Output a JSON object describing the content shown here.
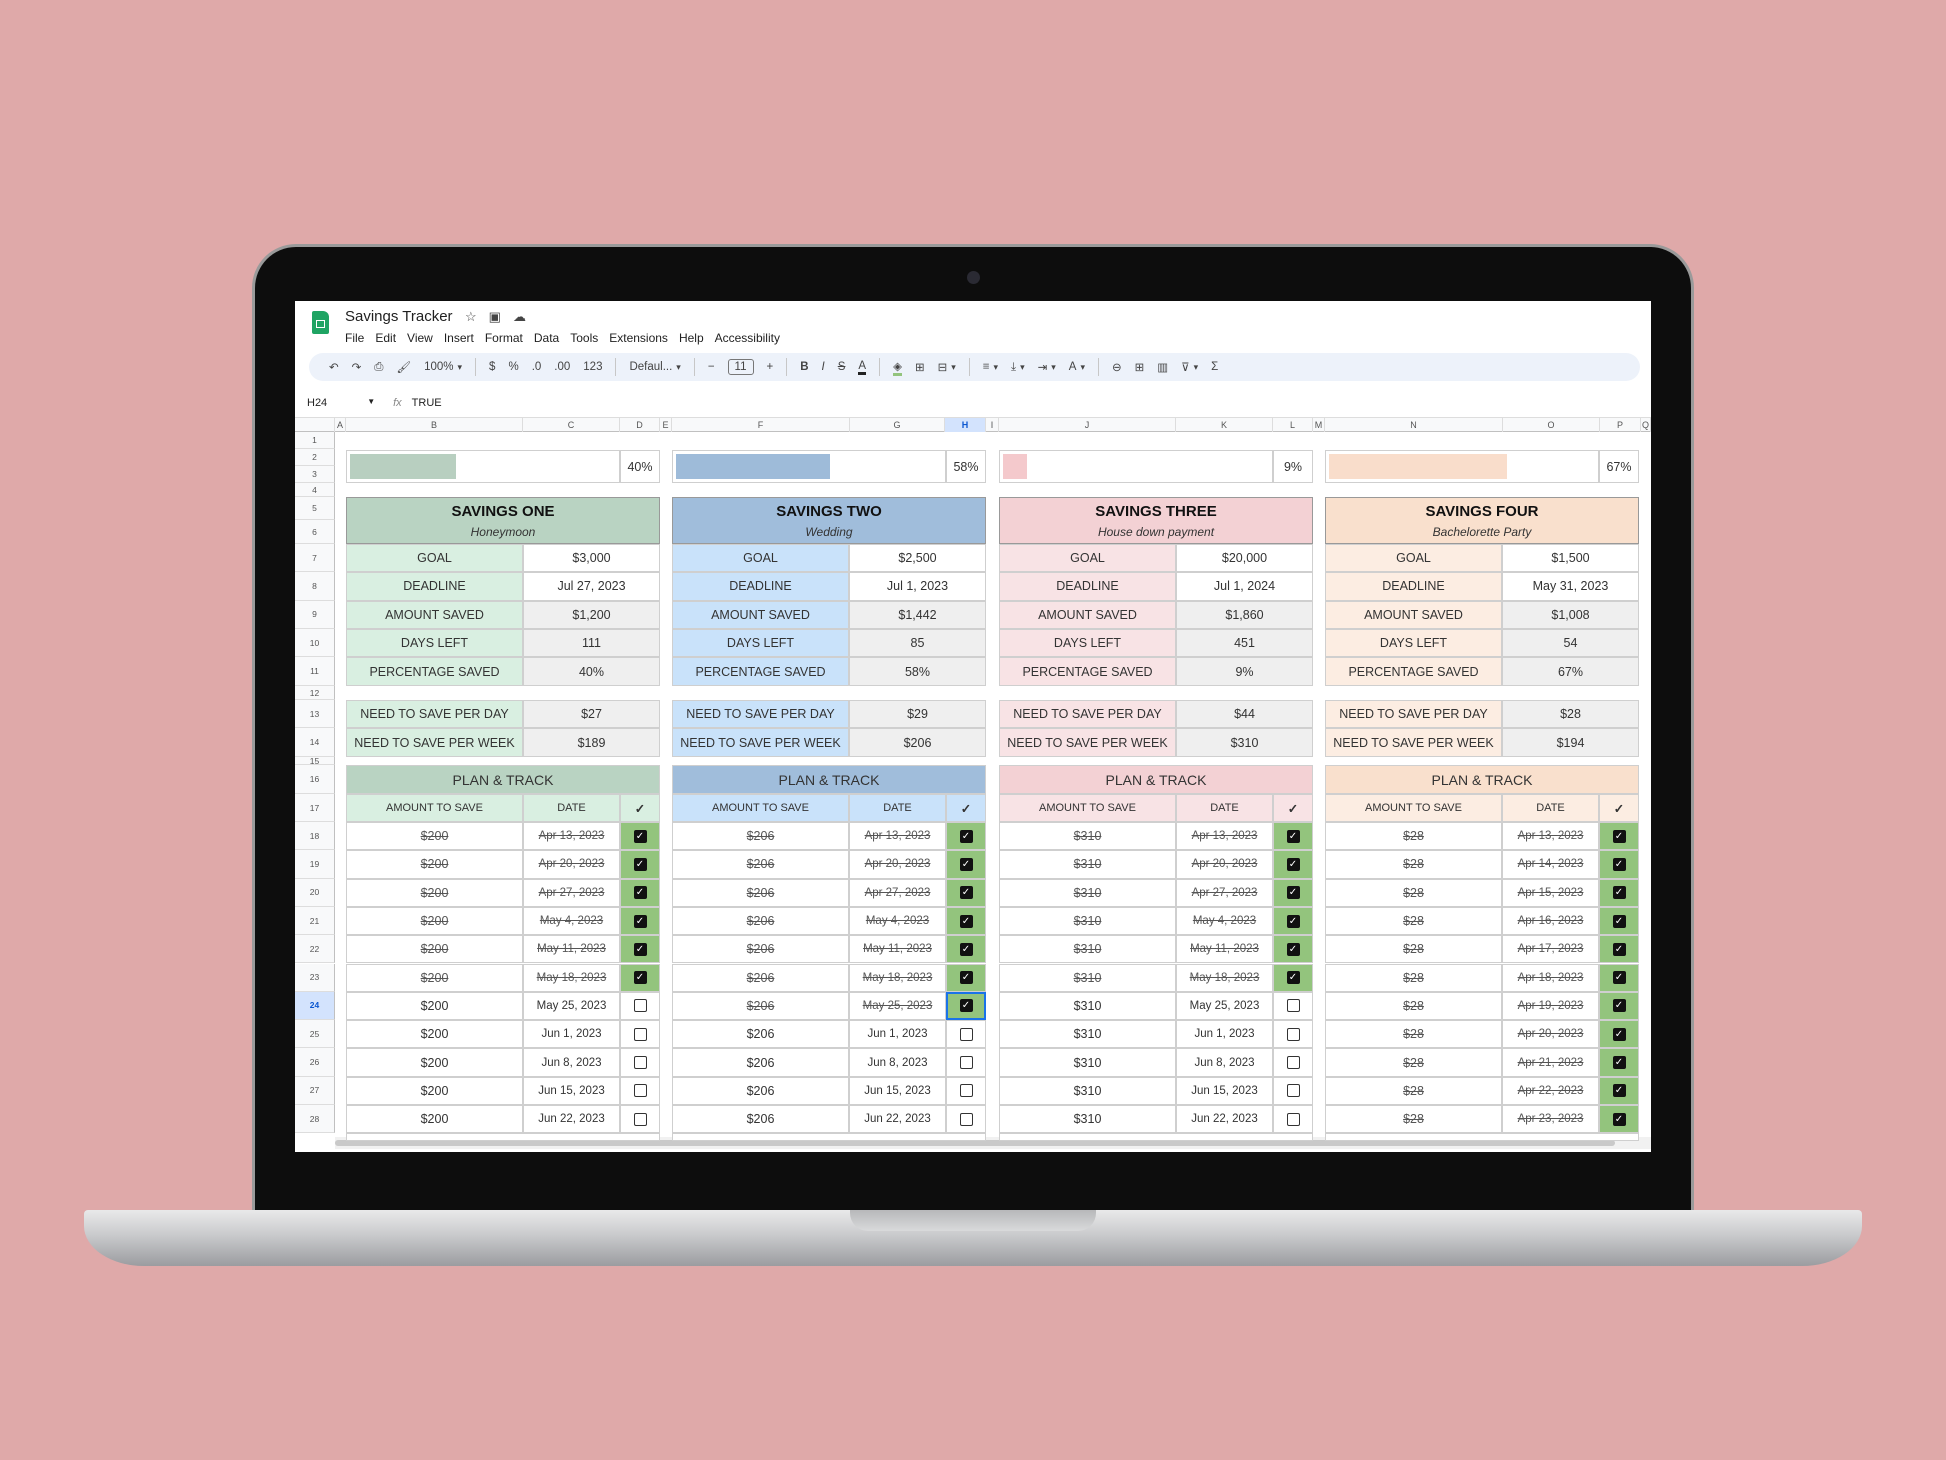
{
  "app": {
    "title": "Savings Tracker",
    "title_icons": [
      "star-icon",
      "folder-move-icon",
      "cloud-icon"
    ],
    "menu": [
      "File",
      "Edit",
      "View",
      "Insert",
      "Format",
      "Data",
      "Tools",
      "Extensions",
      "Help",
      "Accessibility"
    ]
  },
  "toolbar": {
    "undo": "↶",
    "redo": "↷",
    "print": "⎙",
    "paint": "🖌",
    "zoom": "100%",
    "currency": "$",
    "percent": "%",
    "dec_less": ".0",
    "dec_more": ".00",
    "format_num": "123",
    "font": "Defaul...",
    "minus": "−",
    "font_size": "11",
    "plus": "+",
    "bold": "B",
    "italic": "I",
    "strike": "S",
    "text_color": "A",
    "fill": "◈",
    "borders": "⊞",
    "merge": "⊟",
    "halign": "≡",
    "valign": "⤓",
    "wrap": "⇥",
    "rotate": "A",
    "link": "⊖",
    "comment": "⊞",
    "chart": "▥",
    "filter": "⊽",
    "functions": "Σ"
  },
  "formula_bar": {
    "cell_ref": "H24",
    "fx": "fx",
    "value": "TRUE"
  },
  "columns": [
    "A",
    "B",
    "C",
    "D",
    "E",
    "F",
    "G",
    "H",
    "I",
    "J",
    "K",
    "L",
    "M",
    "N",
    "O",
    "P",
    "Q"
  ],
  "selected_column": "H",
  "selected_row": 24,
  "check_header": "✓",
  "trackers": [
    {
      "title": "SAVINGS ONE",
      "subtitle": "Honeymoon",
      "progress_percent": 40,
      "progress_label": "40%",
      "colors": {
        "header": "#b9d3c2",
        "label": "#d9efe1",
        "bar": "#b8cfc0"
      },
      "stats": [
        [
          "GOAL",
          "$3,000"
        ],
        [
          "DEADLINE",
          "Jul 27, 2023"
        ],
        [
          "AMOUNT SAVED",
          "$1,200"
        ],
        [
          "DAYS LEFT",
          "111"
        ],
        [
          "PERCENTAGE SAVED",
          "40%"
        ]
      ],
      "need": [
        [
          "NEED TO SAVE PER DAY",
          "$27"
        ],
        [
          "NEED TO SAVE PER WEEK",
          "$189"
        ]
      ],
      "plan_title": "PLAN & TRACK",
      "plan_cols": [
        "AMOUNT TO SAVE",
        "DATE"
      ],
      "rows": [
        [
          "$200",
          "Apr 13, 2023",
          true
        ],
        [
          "$200",
          "Apr 20, 2023",
          true
        ],
        [
          "$200",
          "Apr 27, 2023",
          true
        ],
        [
          "$200",
          "May 4, 2023",
          true
        ],
        [
          "$200",
          "May 11, 2023",
          true
        ],
        [
          "$200",
          "May 18, 2023",
          true
        ],
        [
          "$200",
          "May 25, 2023",
          false
        ],
        [
          "$200",
          "Jun 1, 2023",
          false
        ],
        [
          "$200",
          "Jun 8, 2023",
          false
        ],
        [
          "$200",
          "Jun 15, 2023",
          false
        ],
        [
          "$200",
          "Jun 22, 2023",
          false
        ]
      ]
    },
    {
      "title": "SAVINGS TWO",
      "subtitle": "Wedding",
      "progress_percent": 58,
      "progress_label": "58%",
      "colors": {
        "header": "#a0bddb",
        "label": "#c9e2fa",
        "bar": "#9ebbd9"
      },
      "stats": [
        [
          "GOAL",
          "$2,500"
        ],
        [
          "DEADLINE",
          "Jul 1, 2023"
        ],
        [
          "AMOUNT SAVED",
          "$1,442"
        ],
        [
          "DAYS LEFT",
          "85"
        ],
        [
          "PERCENTAGE SAVED",
          "58%"
        ]
      ],
      "need": [
        [
          "NEED TO SAVE PER DAY",
          "$29"
        ],
        [
          "NEED TO SAVE PER WEEK",
          "$206"
        ]
      ],
      "plan_title": "PLAN & TRACK",
      "plan_cols": [
        "AMOUNT TO SAVE",
        "DATE"
      ],
      "rows": [
        [
          "$206",
          "Apr 13, 2023",
          true
        ],
        [
          "$206",
          "Apr 20, 2023",
          true
        ],
        [
          "$206",
          "Apr 27, 2023",
          true
        ],
        [
          "$206",
          "May 4, 2023",
          true
        ],
        [
          "$206",
          "May 11, 2023",
          true
        ],
        [
          "$206",
          "May 18, 2023",
          true
        ],
        [
          "$206",
          "May 25, 2023",
          true
        ],
        [
          "$206",
          "Jun 1, 2023",
          false
        ],
        [
          "$206",
          "Jun 8, 2023",
          false
        ],
        [
          "$206",
          "Jun 15, 2023",
          false
        ],
        [
          "$206",
          "Jun 22, 2023",
          false
        ]
      ]
    },
    {
      "title": "SAVINGS THREE",
      "subtitle": "House down payment",
      "progress_percent": 9,
      "progress_label": "9%",
      "colors": {
        "header": "#f3d1d4",
        "label": "#f8e3e5",
        "bar": "#f4c9cc"
      },
      "stats": [
        [
          "GOAL",
          "$20,000"
        ],
        [
          "DEADLINE",
          "Jul 1, 2024"
        ],
        [
          "AMOUNT SAVED",
          "$1,860"
        ],
        [
          "DAYS LEFT",
          "451"
        ],
        [
          "PERCENTAGE SAVED",
          "9%"
        ]
      ],
      "need": [
        [
          "NEED TO SAVE PER DAY",
          "$44"
        ],
        [
          "NEED TO SAVE PER WEEK",
          "$310"
        ]
      ],
      "plan_title": "PLAN & TRACK",
      "plan_cols": [
        "AMOUNT TO SAVE",
        "DATE"
      ],
      "rows": [
        [
          "$310",
          "Apr 13, 2023",
          true
        ],
        [
          "$310",
          "Apr 20, 2023",
          true
        ],
        [
          "$310",
          "Apr 27, 2023",
          true
        ],
        [
          "$310",
          "May 4, 2023",
          true
        ],
        [
          "$310",
          "May 11, 2023",
          true
        ],
        [
          "$310",
          "May 18, 2023",
          true
        ],
        [
          "$310",
          "May 25, 2023",
          false
        ],
        [
          "$310",
          "Jun 1, 2023",
          false
        ],
        [
          "$310",
          "Jun 8, 2023",
          false
        ],
        [
          "$310",
          "Jun 15, 2023",
          false
        ],
        [
          "$310",
          "Jun 22, 2023",
          false
        ]
      ]
    },
    {
      "title": "SAVINGS FOUR",
      "subtitle": "Bachelorette Party",
      "progress_percent": 67,
      "progress_label": "67%",
      "colors": {
        "header": "#f9e0cd",
        "label": "#fcede2",
        "bar": "#f9ddcb"
      },
      "stats": [
        [
          "GOAL",
          "$1,500"
        ],
        [
          "DEADLINE",
          "May 31, 2023"
        ],
        [
          "AMOUNT SAVED",
          "$1,008"
        ],
        [
          "DAYS LEFT",
          "54"
        ],
        [
          "PERCENTAGE SAVED",
          "67%"
        ]
      ],
      "need": [
        [
          "NEED TO SAVE PER DAY",
          "$28"
        ],
        [
          "NEED TO SAVE PER WEEK",
          "$194"
        ]
      ],
      "plan_title": "PLAN & TRACK",
      "plan_cols": [
        "AMOUNT TO SAVE",
        "DATE"
      ],
      "rows": [
        [
          "$28",
          "Apr 13, 2023",
          true
        ],
        [
          "$28",
          "Apr 14, 2023",
          true
        ],
        [
          "$28",
          "Apr 15, 2023",
          true
        ],
        [
          "$28",
          "Apr 16, 2023",
          true
        ],
        [
          "$28",
          "Apr 17, 2023",
          true
        ],
        [
          "$28",
          "Apr 18, 2023",
          true
        ],
        [
          "$28",
          "Apr 19, 2023",
          true
        ],
        [
          "$28",
          "Apr 20, 2023",
          true
        ],
        [
          "$28",
          "Apr 21, 2023",
          true
        ],
        [
          "$28",
          "Apr 22, 2023",
          true
        ],
        [
          "$28",
          "Apr 23, 2023",
          true
        ]
      ]
    }
  ],
  "colors": {
    "checked_cell": "#93c47d",
    "value_gray": "#efefef",
    "selection": "#1a73e8",
    "background": "#dfa9a9"
  }
}
